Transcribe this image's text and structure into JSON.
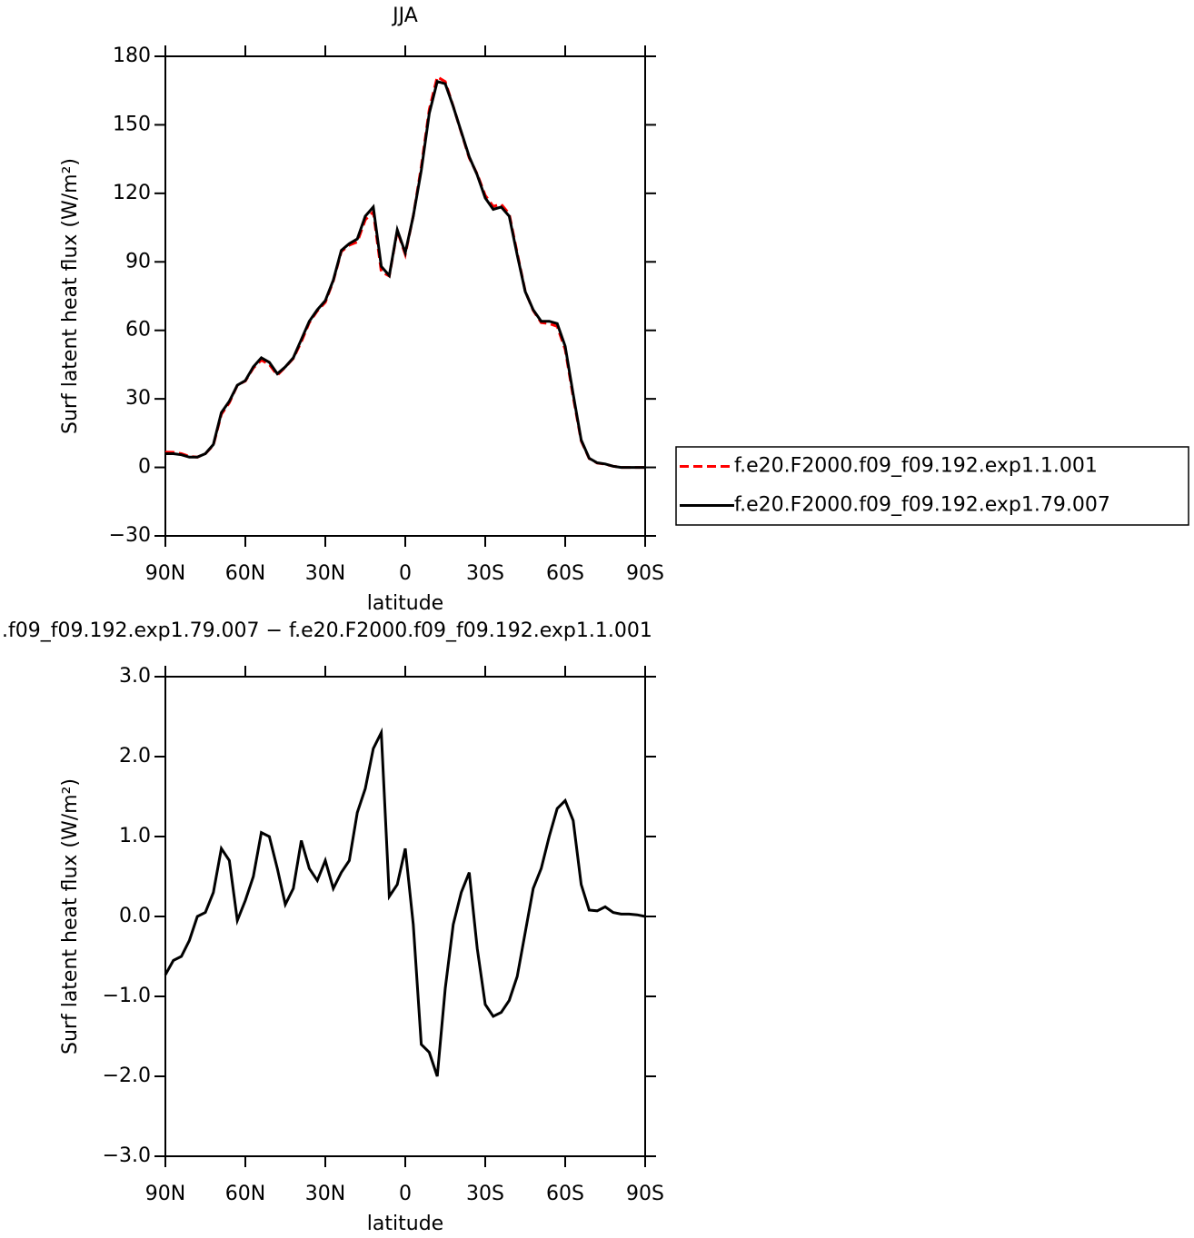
{
  "chart_data": [
    {
      "type": "line",
      "title": "JJA",
      "xlabel": "latitude",
      "ylabel": "Surf latent heat flux (W/m²)",
      "x": [
        90,
        87,
        84,
        81,
        78,
        75,
        72,
        69,
        66,
        63,
        60,
        57,
        54,
        51,
        48,
        45,
        42,
        39,
        36,
        33,
        30,
        27,
        24,
        21,
        18,
        15,
        12,
        9,
        6,
        3,
        0,
        -3,
        -6,
        -9,
        -12,
        -15,
        -18,
        -21,
        -24,
        -27,
        -30,
        -33,
        -36,
        -39,
        -42,
        -45,
        -48,
        -51,
        -54,
        -57,
        -60,
        -63,
        -66,
        -69,
        -72,
        -75,
        -78,
        -81,
        -84,
        -87,
        -90
      ],
      "xlim": [
        90,
        -90
      ],
      "xticks": [
        {
          "value": 90,
          "label": "90N"
        },
        {
          "value": 60,
          "label": "60N"
        },
        {
          "value": 30,
          "label": "30N"
        },
        0,
        {
          "value": -30,
          "label": "30S"
        },
        {
          "value": -60,
          "label": "60S"
        },
        {
          "value": -90,
          "label": "90S"
        }
      ],
      "ylim": [
        -30,
        180
      ],
      "yticks": [
        {
          "value": -30,
          "label": "−30"
        },
        0,
        30,
        60,
        90,
        120,
        150,
        180
      ],
      "legend": "right",
      "series": [
        {
          "name": "f.e20.F2000.f09_f09.192.exp1.1.001",
          "color": "#ff0000",
          "dash": true,
          "values": [
            6.7,
            6.6,
            6,
            4.8,
            4.5,
            6,
            9.7,
            23.2,
            28.3,
            36,
            37.8,
            43.5,
            47,
            45,
            40.4,
            43.9,
            47.7,
            55,
            63.4,
            68.5,
            72.3,
            81.6,
            94.5,
            97.3,
            98.7,
            108.4,
            111.9,
            85.7,
            83.8,
            103.6,
            93.2,
            110.1,
            131.6,
            156.7,
            171,
            168.9,
            158.1,
            146.7,
            135.5,
            128.4,
            119.1,
            114.3,
            115.2,
            111,
            93.8,
            77.2,
            68.7,
            63.4,
            63,
            61.7,
            51.6,
            30.8,
            11.6,
            3.9,
            1.9,
            1.4,
            0.5,
            0,
            0,
            0,
            0
          ]
        },
        {
          "name": "f.e20.F2000.f09_f09.192.exp1.79.007",
          "color": "#000000",
          "dash": false,
          "values": [
            6,
            6,
            5.5,
            4.5,
            4.5,
            6,
            10,
            24,
            29,
            36,
            38,
            44,
            48,
            46,
            41,
            44,
            48,
            56,
            64,
            69,
            73,
            82,
            95,
            98,
            100,
            110,
            114,
            88,
            84,
            104,
            94,
            110,
            130,
            155,
            169,
            168,
            158,
            147,
            136,
            128,
            118,
            113,
            114,
            110,
            93,
            77,
            69,
            64,
            64,
            63,
            53,
            32,
            12,
            4,
            2,
            1.5,
            0.5,
            0,
            0,
            0,
            0
          ]
        }
      ]
    },
    {
      "type": "line",
      "title": ".f09_f09.192.exp1.79.007 − f.e20.F2000.f09_f09.192.exp1.1.001",
      "xlabel": "latitude",
      "ylabel": "Surf latent heat flux (W/m²)",
      "x": [
        90,
        87,
        84,
        81,
        78,
        75,
        72,
        69,
        66,
        63,
        60,
        57,
        54,
        51,
        48,
        45,
        42,
        39,
        36,
        33,
        30,
        27,
        24,
        21,
        18,
        15,
        12,
        9,
        6,
        3,
        0,
        -3,
        -6,
        -9,
        -12,
        -15,
        -18,
        -21,
        -24,
        -27,
        -30,
        -33,
        -36,
        -39,
        -42,
        -45,
        -48,
        -51,
        -54,
        -57,
        -60,
        -63,
        -66,
        -69,
        -72,
        -75,
        -78,
        -81,
        -84,
        -87,
        -90
      ],
      "xlim": [
        90,
        -90
      ],
      "xticks": [
        {
          "value": 90,
          "label": "90N"
        },
        {
          "value": 60,
          "label": "60N"
        },
        {
          "value": 30,
          "label": "30N"
        },
        0,
        {
          "value": -30,
          "label": "30S"
        },
        {
          "value": -60,
          "label": "60S"
        },
        {
          "value": -90,
          "label": "90S"
        }
      ],
      "ylim": [
        -3,
        3
      ],
      "yticks": [
        {
          "value": -3,
          "label": "−3.0"
        },
        {
          "value": -2,
          "label": "−2.0"
        },
        {
          "value": -1,
          "label": "−1.0"
        },
        {
          "value": 0,
          "label": "0.0"
        },
        {
          "value": 1,
          "label": "1.0"
        },
        {
          "value": 2,
          "label": "2.0"
        },
        {
          "value": 3,
          "label": "3.0"
        }
      ],
      "series": [
        {
          "color": "#000000",
          "dash": false,
          "values": [
            -0.73,
            -0.55,
            -0.5,
            -0.3,
            0,
            0.05,
            0.3,
            0.85,
            0.7,
            -0.05,
            0.2,
            0.5,
            1.05,
            1,
            0.6,
            0.15,
            0.35,
            0.95,
            0.6,
            0.45,
            0.7,
            0.35,
            0.55,
            0.7,
            1.3,
            1.6,
            2.1,
            2.3,
            0.25,
            0.4,
            0.85,
            -0.1,
            -1.6,
            -1.7,
            -2,
            -0.9,
            -0.1,
            0.3,
            0.55,
            -0.4,
            -1.1,
            -1.25,
            -1.2,
            -1.05,
            -0.75,
            -0.2,
            0.35,
            0.6,
            1,
            1.35,
            1.45,
            1.2,
            0.4,
            0.08,
            0.07,
            0.12,
            0.05,
            0.03,
            0.03,
            0.02,
            0
          ]
        }
      ]
    }
  ]
}
